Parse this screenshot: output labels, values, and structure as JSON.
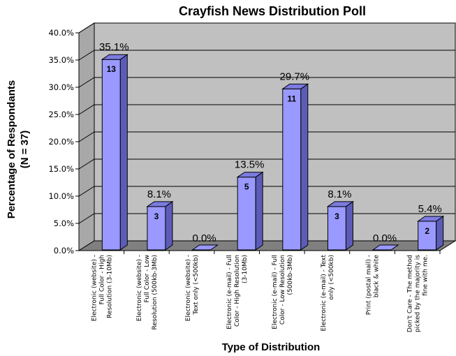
{
  "chart_data": {
    "type": "bar",
    "title": "Crayfish News Distribution Poll",
    "xlabel": "Type of Distribution",
    "ylabel_lines": [
      "Percentage of Respondants",
      "(N = 37)"
    ],
    "ylim": [
      0,
      40
    ],
    "yticks": [
      "0.0%",
      "5.0%",
      "10.0%",
      "15.0%",
      "20.0%",
      "25.0%",
      "30.0%",
      "35.0%",
      "40.0%"
    ],
    "grid": true,
    "categories": [
      [
        "Electronic (website) -",
        "Full Color - High",
        "Resolution (3-10Mb)"
      ],
      [
        "Electronic (website) -",
        "Full Color - Low",
        "Resolution (500kb-3Mb)"
      ],
      [
        "Electronic (website) -",
        "Text only (<500kb)"
      ],
      [
        "Electronic (e-mail) - Full",
        "Color - High Resolution",
        "(3-10Mb)"
      ],
      [
        "Electronic (e-mail) - Full",
        "Color - Low Resolution",
        "(500kb-3Mb)"
      ],
      [
        "Electronic (e-mail) - Text",
        "only (<500kb)"
      ],
      [
        "Print (postal mail) -",
        "black & white"
      ],
      [
        "Don't Care - The method",
        "picked by the majority is",
        "fine with me."
      ]
    ],
    "values": [
      35.1,
      8.1,
      0.0,
      13.5,
      29.7,
      8.1,
      0.0,
      5.4
    ],
    "value_labels": [
      "35.1%",
      "8.1%",
      "0.0%",
      "13.5%",
      "29.7%",
      "8.1%",
      "0.0%",
      "5.4%"
    ],
    "counts": [
      "13",
      "3",
      "",
      "5",
      "11",
      "3",
      "",
      "2"
    ],
    "colors": {
      "bar_front": "#9999ff",
      "bar_side": "#5c5cb8",
      "bar_top": "#7b7be0",
      "wall": "#c0c0c0",
      "floor": "#808080"
    }
  }
}
